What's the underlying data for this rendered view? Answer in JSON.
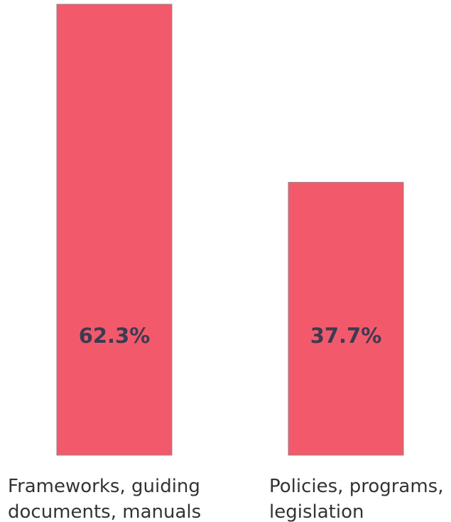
{
  "chart_data": {
    "type": "bar",
    "categories": [
      [
        "Frameworks, guiding",
        "documents, manuals"
      ],
      [
        "Policies, programs,",
        "legislation"
      ]
    ],
    "values": [
      62.3,
      37.7
    ],
    "value_labels": [
      "62.3%",
      "37.7%"
    ],
    "ylim": [
      0,
      62.3
    ],
    "grid": false,
    "legend": "none",
    "colors": {
      "bar": "#f25a6b",
      "bar_stroke": "#9a7f86",
      "value_label": "#3b3b52",
      "category_label": "#333333"
    }
  }
}
